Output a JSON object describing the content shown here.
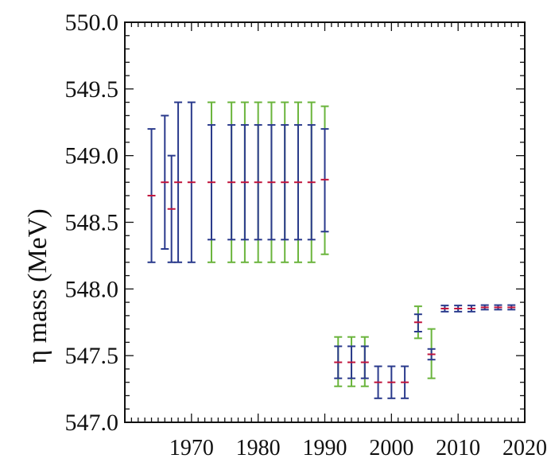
{
  "chart_data": {
    "type": "errorbar",
    "ylabel": "η mass (MeV)",
    "xlim": [
      1960,
      2020
    ],
    "ylim": [
      547.0,
      550.0
    ],
    "x_ticks": [
      1970,
      1980,
      1990,
      2000,
      2010,
      2020
    ],
    "y_ticks": [
      547.0,
      547.5,
      548.0,
      548.5,
      549.0,
      549.5,
      550.0
    ],
    "x_tick_labels": [
      "1970",
      "1980",
      "1990",
      "2000",
      "2010",
      "2020"
    ],
    "y_tick_labels": [
      "547.0",
      "547.5",
      "548.0",
      "548.5",
      "549.0",
      "549.5",
      "550.0"
    ],
    "grid": false,
    "colors": {
      "blue": "#2a3a8c",
      "green": "#6ab43c",
      "central": "#c0143c",
      "axis": "#111111"
    },
    "points": [
      {
        "x": 1964,
        "y": 548.7,
        "outer_low": 548.2,
        "outer_high": 549.2,
        "inner_low": null,
        "inner_high": null,
        "color": "blue"
      },
      {
        "x": 1966,
        "y": 548.8,
        "outer_low": 548.3,
        "outer_high": 549.3,
        "inner_low": null,
        "inner_high": null,
        "color": "blue"
      },
      {
        "x": 1967,
        "y": 548.6,
        "outer_low": 548.2,
        "outer_high": 549.0,
        "inner_low": null,
        "inner_high": null,
        "color": "blue"
      },
      {
        "x": 1968,
        "y": 548.8,
        "outer_low": 548.2,
        "outer_high": 549.4,
        "inner_low": null,
        "inner_high": null,
        "color": "blue"
      },
      {
        "x": 1970,
        "y": 548.8,
        "outer_low": 548.2,
        "outer_high": 549.4,
        "inner_low": null,
        "inner_high": null,
        "color": "blue"
      },
      {
        "x": 1973,
        "y": 548.8,
        "outer_low": 548.2,
        "outer_high": 549.4,
        "inner_low": 548.37,
        "inner_high": 549.23,
        "color": "green"
      },
      {
        "x": 1976,
        "y": 548.8,
        "outer_low": 548.2,
        "outer_high": 549.4,
        "inner_low": 548.37,
        "inner_high": 549.23,
        "color": "green"
      },
      {
        "x": 1978,
        "y": 548.8,
        "outer_low": 548.2,
        "outer_high": 549.4,
        "inner_low": 548.37,
        "inner_high": 549.23,
        "color": "green"
      },
      {
        "x": 1980,
        "y": 548.8,
        "outer_low": 548.2,
        "outer_high": 549.4,
        "inner_low": 548.37,
        "inner_high": 549.23,
        "color": "green"
      },
      {
        "x": 1982,
        "y": 548.8,
        "outer_low": 548.2,
        "outer_high": 549.4,
        "inner_low": 548.37,
        "inner_high": 549.23,
        "color": "green"
      },
      {
        "x": 1984,
        "y": 548.8,
        "outer_low": 548.2,
        "outer_high": 549.4,
        "inner_low": 548.37,
        "inner_high": 549.23,
        "color": "green"
      },
      {
        "x": 1986,
        "y": 548.8,
        "outer_low": 548.2,
        "outer_high": 549.4,
        "inner_low": 548.37,
        "inner_high": 549.23,
        "color": "green"
      },
      {
        "x": 1988,
        "y": 548.8,
        "outer_low": 548.2,
        "outer_high": 549.4,
        "inner_low": 548.37,
        "inner_high": 549.23,
        "color": "green"
      },
      {
        "x": 1990,
        "y": 548.82,
        "outer_low": 548.26,
        "outer_high": 549.37,
        "inner_low": 548.43,
        "inner_high": 549.2,
        "color": "green"
      },
      {
        "x": 1992,
        "y": 547.45,
        "outer_low": 547.27,
        "outer_high": 547.64,
        "inner_low": 547.33,
        "inner_high": 547.57,
        "color": "green"
      },
      {
        "x": 1994,
        "y": 547.45,
        "outer_low": 547.27,
        "outer_high": 547.64,
        "inner_low": 547.33,
        "inner_high": 547.57,
        "color": "green"
      },
      {
        "x": 1996,
        "y": 547.45,
        "outer_low": 547.27,
        "outer_high": 547.64,
        "inner_low": 547.33,
        "inner_high": 547.57,
        "color": "green"
      },
      {
        "x": 1998,
        "y": 547.3,
        "outer_low": 547.18,
        "outer_high": 547.42,
        "inner_low": null,
        "inner_high": null,
        "color": "blue"
      },
      {
        "x": 2000,
        "y": 547.3,
        "outer_low": 547.18,
        "outer_high": 547.42,
        "inner_low": null,
        "inner_high": null,
        "color": "blue"
      },
      {
        "x": 2002,
        "y": 547.3,
        "outer_low": 547.18,
        "outer_high": 547.42,
        "inner_low": null,
        "inner_high": null,
        "color": "blue"
      },
      {
        "x": 2004,
        "y": 547.75,
        "outer_low": 547.63,
        "outer_high": 547.87,
        "inner_low": 547.68,
        "inner_high": 547.81,
        "color": "green"
      },
      {
        "x": 2006,
        "y": 547.51,
        "outer_low": 547.33,
        "outer_high": 547.7,
        "inner_low": 547.47,
        "inner_high": 547.55,
        "color": "green"
      },
      {
        "x": 2008,
        "y": 547.853,
        "outer_low": 547.83,
        "outer_high": 547.876,
        "inner_low": null,
        "inner_high": null,
        "color": "blue"
      },
      {
        "x": 2010,
        "y": 547.853,
        "outer_low": 547.83,
        "outer_high": 547.876,
        "inner_low": null,
        "inner_high": null,
        "color": "blue"
      },
      {
        "x": 2012,
        "y": 547.853,
        "outer_low": 547.83,
        "outer_high": 547.876,
        "inner_low": null,
        "inner_high": null,
        "color": "blue"
      },
      {
        "x": 2014,
        "y": 547.862,
        "outer_low": 547.845,
        "outer_high": 547.879,
        "inner_low": null,
        "inner_high": null,
        "color": "blue"
      },
      {
        "x": 2016,
        "y": 547.862,
        "outer_low": 547.845,
        "outer_high": 547.879,
        "inner_low": null,
        "inner_high": null,
        "color": "blue"
      },
      {
        "x": 2018,
        "y": 547.862,
        "outer_low": 547.845,
        "outer_high": 547.879,
        "inner_low": null,
        "inner_high": null,
        "color": "blue"
      }
    ]
  }
}
